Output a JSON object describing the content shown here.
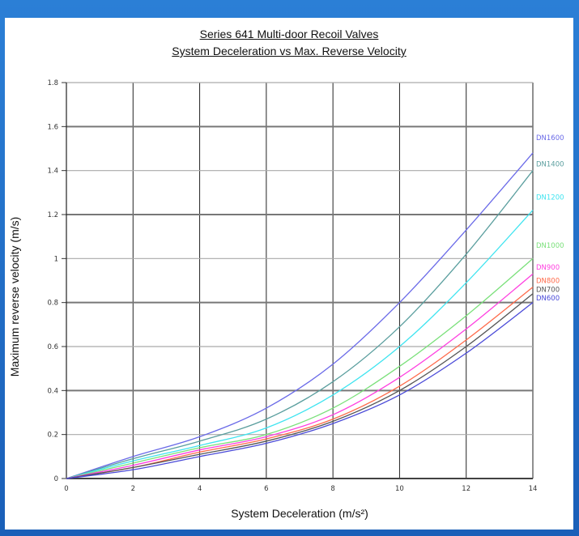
{
  "chart_data": {
    "type": "line",
    "title_line1": "Series 641 Multi-door Recoil Valves",
    "title_line2": "System Deceleration vs Max. Reverse Velocity",
    "xlabel": "System Deceleration (m/s²)",
    "ylabel": "Maximum reverse velocity (m/s)",
    "xlim": [
      0,
      14
    ],
    "ylim": [
      0,
      1.8
    ],
    "grid": true,
    "x_ticks": [
      "0",
      "2",
      "4",
      "6",
      "8",
      "10",
      "12",
      "14"
    ],
    "y_ticks": [
      "0",
      "0.2",
      "0.4",
      "0.6",
      "0.8",
      "1",
      "1.2",
      "1.4",
      "1.6",
      "1.8"
    ],
    "x": [
      0,
      2,
      4,
      6,
      8,
      10,
      12,
      14
    ],
    "series": [
      {
        "name": "DN1600",
        "color": "#6a6ae8",
        "values": [
          0,
          0.1,
          0.19,
          0.32,
          0.52,
          0.8,
          1.13,
          1.48
        ]
      },
      {
        "name": "DN1400",
        "color": "#5a9e9e",
        "values": [
          0,
          0.09,
          0.17,
          0.27,
          0.44,
          0.69,
          1.02,
          1.4
        ]
      },
      {
        "name": "DN1200",
        "color": "#3fe4f0",
        "values": [
          0,
          0.08,
          0.15,
          0.23,
          0.38,
          0.6,
          0.89,
          1.22
        ]
      },
      {
        "name": "DN1000",
        "color": "#7ae07a",
        "values": [
          0,
          0.07,
          0.14,
          0.2,
          0.32,
          0.51,
          0.74,
          1.0
        ]
      },
      {
        "name": "DN900",
        "color": "#ff3fe0",
        "values": [
          0,
          0.06,
          0.13,
          0.19,
          0.29,
          0.46,
          0.68,
          0.93
        ]
      },
      {
        "name": "DN800",
        "color": "#ff6a4a",
        "values": [
          0,
          0.05,
          0.12,
          0.18,
          0.27,
          0.42,
          0.63,
          0.87
        ]
      },
      {
        "name": "DN700",
        "color": "#555555",
        "values": [
          0,
          0.05,
          0.11,
          0.17,
          0.26,
          0.4,
          0.6,
          0.84
        ]
      },
      {
        "name": "DN600",
        "color": "#4a4ad8",
        "values": [
          0,
          0.04,
          0.1,
          0.16,
          0.25,
          0.38,
          0.57,
          0.8
        ]
      }
    ]
  }
}
